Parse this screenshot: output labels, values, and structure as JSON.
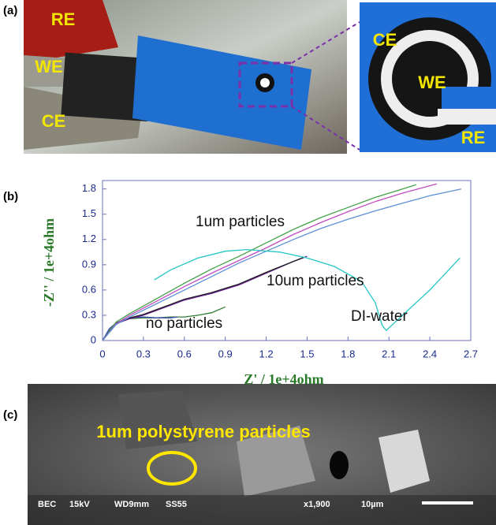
{
  "panel_a": {
    "label": "(a)",
    "photo_labels": [
      "RE",
      "WE",
      "CE"
    ],
    "zoom_labels": [
      "CE",
      "WE",
      "RE"
    ]
  },
  "chart_data": {
    "type": "line",
    "panel_label": "(b)",
    "x_label": "Z' / 1e+4ohm",
    "y_label": "-Z'' / 1e+4ohm",
    "xlim": [
      0,
      2.7
    ],
    "ylim": [
      0,
      1.9
    ],
    "xticks": [
      0,
      0.3,
      0.6,
      0.9,
      1.2,
      1.5,
      1.8,
      2.1,
      2.4,
      2.7
    ],
    "yticks": [
      0,
      0.3,
      0.6,
      0.9,
      1.2,
      1.5,
      1.8
    ],
    "annotations": [
      "1um particles",
      "10um particles",
      "no particles",
      "DI-water"
    ],
    "series": [
      {
        "color": "#2e7d32",
        "x": [
          0,
          0.05,
          0.1,
          0.2,
          0.3,
          0.4,
          0.5,
          0.6,
          0.7,
          0.8,
          0.9
        ],
        "values": [
          0,
          0.12,
          0.2,
          0.26,
          0.27,
          0.27,
          0.28,
          0.28,
          0.3,
          0.33,
          0.4
        ]
      },
      {
        "color": "#3949ab",
        "x": [
          0,
          0.05,
          0.1,
          0.2,
          0.3,
          0.4,
          0.5,
          0.55
        ],
        "values": [
          0,
          0.14,
          0.21,
          0.27,
          0.28,
          0.27,
          0.27,
          0.28
        ]
      },
      {
        "color": "#6a1b9a",
        "x": [
          0,
          0.1,
          0.2,
          0.3,
          0.4,
          0.5,
          0.6,
          0.8,
          1.0,
          1.2,
          1.4,
          1.5
        ],
        "values": [
          0,
          0.2,
          0.26,
          0.3,
          0.36,
          0.42,
          0.48,
          0.56,
          0.66,
          0.8,
          0.94,
          1.0
        ]
      },
      {
        "color": "#212121",
        "x": [
          0,
          0.1,
          0.2,
          0.3,
          0.4,
          0.5,
          0.6,
          0.8,
          1.0,
          1.2,
          1.4,
          1.48
        ],
        "values": [
          0,
          0.21,
          0.27,
          0.31,
          0.37,
          0.43,
          0.49,
          0.57,
          0.67,
          0.81,
          0.94,
          0.99
        ]
      },
      {
        "color": "#43a047",
        "x": [
          0,
          0.1,
          0.2,
          0.4,
          0.6,
          0.8,
          1.0,
          1.2,
          1.4,
          1.6,
          1.8,
          2.0,
          2.2,
          2.3
        ],
        "values": [
          0,
          0.22,
          0.32,
          0.5,
          0.68,
          0.85,
          1.0,
          1.16,
          1.32,
          1.46,
          1.58,
          1.7,
          1.8,
          1.85
        ]
      },
      {
        "color": "#c04cc0",
        "x": [
          0,
          0.1,
          0.2,
          0.4,
          0.6,
          0.8,
          1.0,
          1.2,
          1.4,
          1.6,
          1.8,
          2.0,
          2.2,
          2.45
        ],
        "values": [
          0,
          0.2,
          0.3,
          0.47,
          0.64,
          0.8,
          0.95,
          1.1,
          1.26,
          1.4,
          1.53,
          1.65,
          1.75,
          1.86
        ]
      },
      {
        "color": "#5c8fd6",
        "x": [
          0,
          0.1,
          0.2,
          0.4,
          0.6,
          0.8,
          1.0,
          1.2,
          1.4,
          1.6,
          1.8,
          2.0,
          2.2,
          2.4,
          2.63
        ],
        "values": [
          0,
          0.19,
          0.28,
          0.44,
          0.6,
          0.76,
          0.92,
          1.06,
          1.2,
          1.33,
          1.44,
          1.54,
          1.63,
          1.72,
          1.8
        ]
      },
      {
        "color": "#26c6c6",
        "x": [
          0.38,
          0.5,
          0.7,
          0.9,
          1.06,
          1.3,
          1.5,
          1.7,
          1.9,
          2.0,
          2.05,
          2.08,
          2.2,
          2.4,
          2.62
        ],
        "values": [
          0.72,
          0.84,
          0.98,
          1.06,
          1.08,
          1.05,
          0.98,
          0.88,
          0.7,
          0.45,
          0.18,
          0.12,
          0.3,
          0.6,
          0.98
        ]
      }
    ]
  },
  "panel_c": {
    "label": "(c)",
    "caption": "1um polystyrene particles",
    "info": [
      "BEC",
      "15kV",
      "WD9mm",
      "SS55",
      "x1,900",
      "10µm"
    ]
  }
}
